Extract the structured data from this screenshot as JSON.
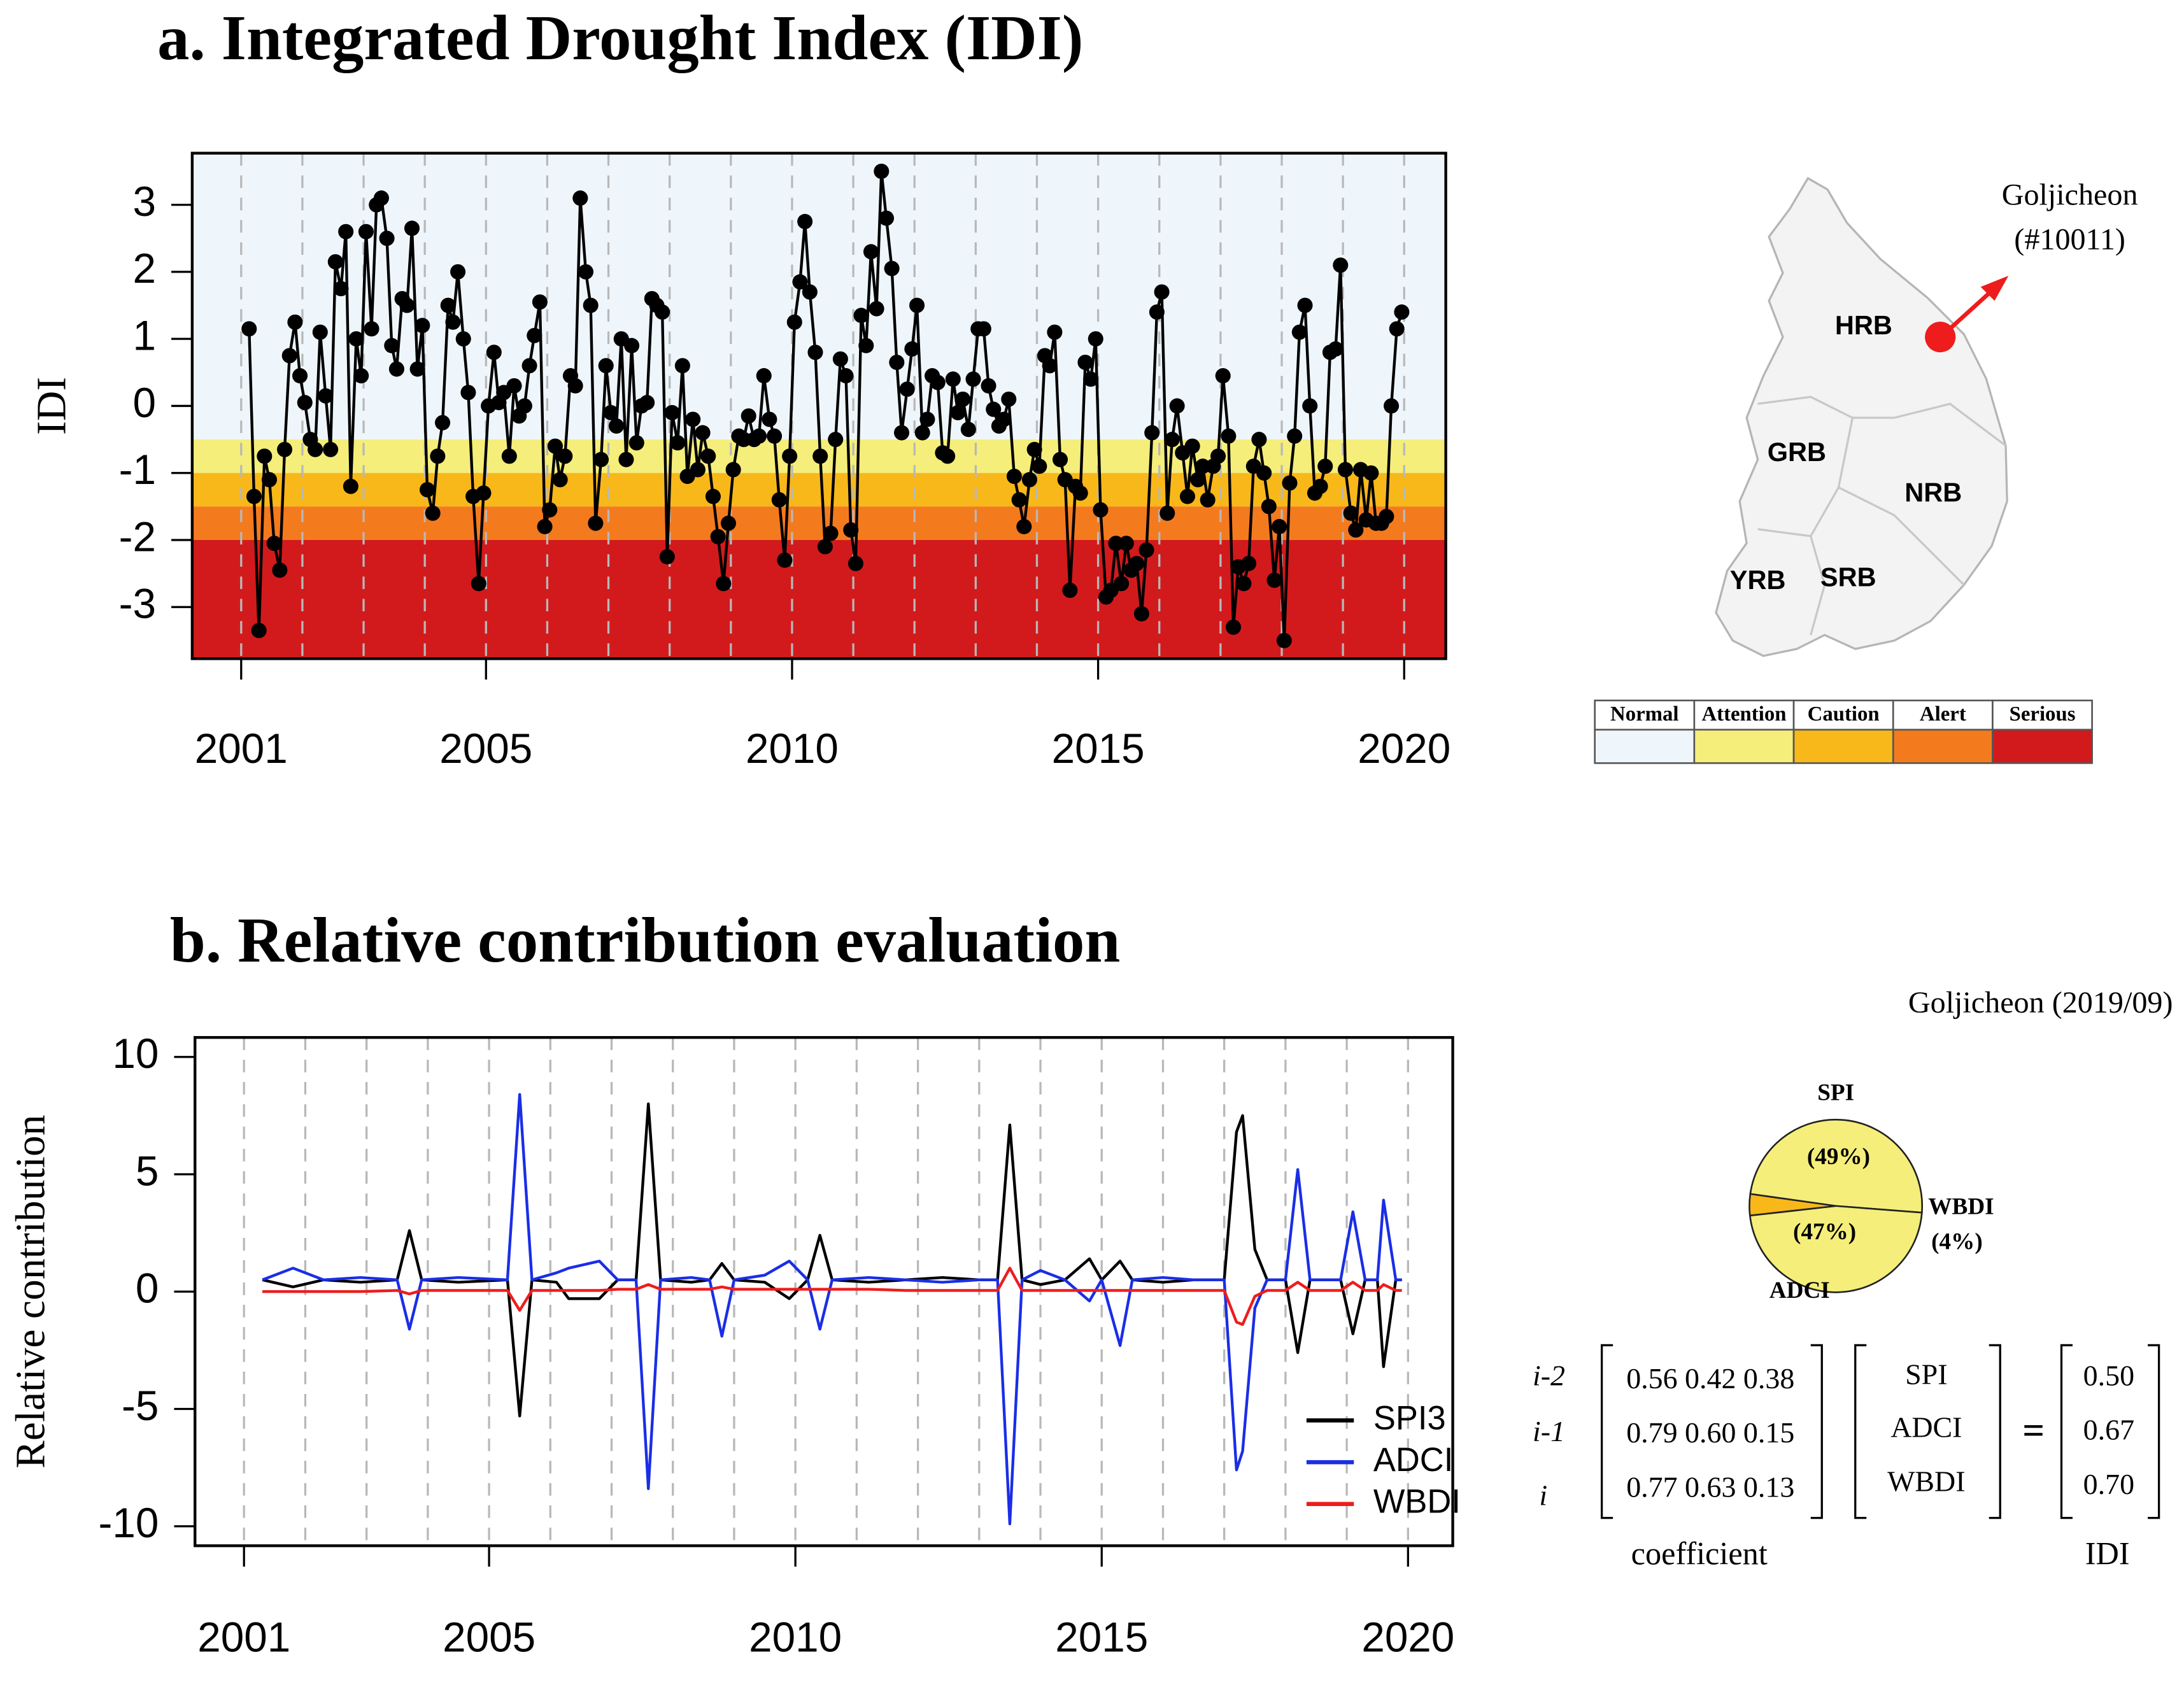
{
  "chart_data": [
    {
      "type": "line",
      "title": "a. Integrated Drought Index (IDI)",
      "ylabel": "IDI",
      "color": "#000000",
      "markers": true,
      "x": [
        2001.13,
        2001.21,
        2001.29,
        2001.38,
        2001.46,
        2001.54,
        2001.63,
        2001.71,
        2001.79,
        2001.88,
        2001.96,
        2002.04,
        2002.13,
        2002.21,
        2002.29,
        2002.38,
        2002.46,
        2002.54,
        2002.63,
        2002.71,
        2002.79,
        2002.88,
        2002.96,
        2003.04,
        2003.13,
        2003.21,
        2003.29,
        2003.38,
        2003.46,
        2003.54,
        2003.63,
        2003.71,
        2003.79,
        2003.88,
        2003.96,
        2004.04,
        2004.13,
        2004.21,
        2004.29,
        2004.38,
        2004.46,
        2004.54,
        2004.63,
        2004.71,
        2004.79,
        2004.88,
        2004.96,
        2005.04,
        2005.13,
        2005.21,
        2005.29,
        2005.38,
        2005.46,
        2005.54,
        2005.63,
        2005.71,
        2005.79,
        2005.88,
        2005.96,
        2006.04,
        2006.13,
        2006.21,
        2006.29,
        2006.38,
        2006.46,
        2006.54,
        2006.63,
        2006.71,
        2006.79,
        2006.88,
        2006.96,
        2007.04,
        2007.13,
        2007.21,
        2007.29,
        2007.38,
        2007.46,
        2007.54,
        2007.63,
        2007.71,
        2007.79,
        2007.88,
        2007.96,
        2008.04,
        2008.13,
        2008.21,
        2008.29,
        2008.38,
        2008.46,
        2008.54,
        2008.63,
        2008.71,
        2008.79,
        2008.88,
        2008.96,
        2009.04,
        2009.13,
        2009.21,
        2009.29,
        2009.38,
        2009.46,
        2009.54,
        2009.63,
        2009.71,
        2009.79,
        2009.88,
        2009.96,
        2010.04,
        2010.13,
        2010.21,
        2010.29,
        2010.38,
        2010.46,
        2010.54,
        2010.63,
        2010.71,
        2010.79,
        2010.88,
        2010.96,
        2011.04,
        2011.13,
        2011.21,
        2011.29,
        2011.38,
        2011.46,
        2011.54,
        2011.63,
        2011.71,
        2011.79,
        2011.88,
        2011.96,
        2012.04,
        2012.13,
        2012.21,
        2012.29,
        2012.38,
        2012.46,
        2012.54,
        2012.63,
        2012.71,
        2012.79,
        2012.88,
        2012.96,
        2013.04,
        2013.13,
        2013.21,
        2013.29,
        2013.38,
        2013.46,
        2013.54,
        2013.63,
        2013.71,
        2013.79,
        2013.88,
        2013.96,
        2014.04,
        2014.13,
        2014.21,
        2014.29,
        2014.38,
        2014.46,
        2014.54,
        2014.63,
        2014.71,
        2014.79,
        2014.88,
        2014.96,
        2015.04,
        2015.13,
        2015.21,
        2015.29,
        2015.38,
        2015.46,
        2015.54,
        2015.63,
        2015.71,
        2015.79,
        2015.88,
        2015.96,
        2016.04,
        2016.13,
        2016.21,
        2016.29,
        2016.38,
        2016.46,
        2016.54,
        2016.63,
        2016.71,
        2016.79,
        2016.88,
        2016.96,
        2017.04,
        2017.13,
        2017.21,
        2017.29,
        2017.38,
        2017.46,
        2017.54,
        2017.63,
        2017.71,
        2017.79,
        2017.88,
        2017.96,
        2018.04,
        2018.13,
        2018.21,
        2018.29,
        2018.38,
        2018.46,
        2018.54,
        2018.63,
        2018.71,
        2018.79,
        2018.88,
        2018.96,
        2019.04,
        2019.13,
        2019.21,
        2019.29,
        2019.38,
        2019.46,
        2019.54,
        2019.63,
        2019.71,
        2019.79,
        2019.88,
        2019.96
      ],
      "values": [
        1.15,
        -1.35,
        -3.35,
        -0.75,
        -1.1,
        -2.05,
        -2.45,
        -0.65,
        0.75,
        1.25,
        0.45,
        0.05,
        -0.5,
        -0.65,
        1.1,
        0.15,
        -0.65,
        2.15,
        1.75,
        2.6,
        -1.2,
        1.0,
        0.45,
        2.6,
        1.15,
        3.0,
        3.1,
        2.5,
        0.9,
        0.55,
        1.6,
        1.5,
        2.65,
        0.55,
        1.2,
        -1.25,
        -1.6,
        -0.75,
        -0.25,
        1.5,
        1.25,
        2.0,
        1.0,
        0.2,
        -1.35,
        -2.65,
        -1.3,
        0.0,
        0.8,
        0.05,
        0.2,
        -0.75,
        0.3,
        -0.15,
        0.0,
        0.6,
        1.05,
        1.55,
        -1.8,
        -1.55,
        -0.6,
        -1.1,
        -0.75,
        0.45,
        0.3,
        3.1,
        2.0,
        1.5,
        -1.75,
        -0.8,
        0.6,
        -0.1,
        -0.3,
        1.0,
        -0.8,
        0.9,
        -0.55,
        0.0,
        0.05,
        1.6,
        1.5,
        1.4,
        -2.25,
        -0.1,
        -0.55,
        0.6,
        -1.05,
        -0.2,
        -0.95,
        -0.4,
        -0.75,
        -1.35,
        -1.95,
        -2.65,
        -1.75,
        -0.95,
        -0.45,
        -0.5,
        -0.15,
        -0.5,
        -0.45,
        0.45,
        -0.2,
        -0.45,
        -1.4,
        -2.3,
        -0.75,
        1.25,
        1.85,
        2.75,
        1.7,
        0.8,
        -0.75,
        -2.1,
        -1.9,
        -0.5,
        0.7,
        0.45,
        -1.85,
        -2.35,
        1.35,
        0.9,
        2.3,
        1.45,
        3.5,
        2.8,
        2.05,
        0.65,
        -0.4,
        0.25,
        0.85,
        1.5,
        -0.4,
        -0.2,
        0.45,
        0.35,
        -0.7,
        -0.75,
        0.4,
        -0.1,
        0.1,
        -0.35,
        0.4,
        1.15,
        1.15,
        0.3,
        -0.05,
        -0.3,
        -0.2,
        0.1,
        -1.05,
        -1.4,
        -1.8,
        -1.1,
        -0.65,
        -0.9,
        0.75,
        0.6,
        1.1,
        -0.8,
        -1.1,
        -2.75,
        -1.2,
        -1.3,
        0.65,
        0.4,
        1.0,
        -1.55,
        -2.85,
        -2.75,
        -2.05,
        -2.65,
        -2.05,
        -2.45,
        -2.35,
        -3.1,
        -2.15,
        -0.4,
        1.4,
        1.7,
        -1.6,
        -0.5,
        0.0,
        -0.7,
        -1.35,
        -0.6,
        -1.1,
        -0.9,
        -1.4,
        -0.9,
        -0.75,
        0.45,
        -0.45,
        -3.3,
        -2.4,
        -2.65,
        -2.35,
        -0.9,
        -0.5,
        -1.0,
        -1.5,
        -2.6,
        -1.8,
        -3.5,
        -1.15,
        -0.45,
        1.1,
        1.5,
        0.0,
        -1.3,
        -1.2,
        -0.9,
        0.8,
        0.85,
        2.1,
        -0.95,
        -1.6,
        -1.85,
        -0.95,
        -1.7,
        -1.0,
        -1.75,
        -1.75,
        -1.65,
        0.0,
        1.15,
        1.4
      ],
      "xlim": [
        2000.2,
        2020.68
      ],
      "ylim": [
        -3.77,
        3.77
      ],
      "xticks": [
        2001,
        2005,
        2010,
        2015,
        2020
      ],
      "yticks": [
        -3,
        -2,
        -1,
        0,
        1,
        2,
        3
      ],
      "xgrid": [
        2001,
        2002,
        2003,
        2004,
        2005,
        2006,
        2007,
        2008,
        2009,
        2010,
        2011,
        2012,
        2013,
        2014,
        2015,
        2016,
        2017,
        2018,
        2019,
        2020
      ],
      "thresholds": [
        -0.5,
        -1,
        -1.5,
        -2
      ],
      "levels": [
        {
          "name": "Normal",
          "color": "#eef6fc"
        },
        {
          "name": "Attention",
          "color": "#f5ee7a"
        },
        {
          "name": "Caution",
          "color": "#f8b81a"
        },
        {
          "name": "Alert",
          "color": "#f47a1e"
        },
        {
          "name": "Serious",
          "color": "#d21a1c"
        }
      ]
    },
    {
      "type": "line",
      "title": "b. Relative contribution evaluation",
      "ylabel": "Relative contribution",
      "legend": "lower right",
      "x": [
        2001.3,
        2001.8,
        2002.3,
        2002.9,
        2003.5,
        2003.7,
        2003.9,
        2004.5,
        2005.3,
        2005.5,
        2005.7,
        2006.1,
        2006.3,
        2006.8,
        2007.1,
        2007.4,
        2007.6,
        2007.8,
        2008.3,
        2008.6,
        2008.8,
        2009.0,
        2009.5,
        2009.9,
        2010.2,
        2010.4,
        2010.6,
        2011.2,
        2011.8,
        2012.4,
        2013.0,
        2013.3,
        2013.5,
        2013.7,
        2014.0,
        2014.4,
        2014.8,
        2015.0,
        2015.3,
        2015.5,
        2016.0,
        2016.5,
        2017.0,
        2017.2,
        2017.3,
        2017.5,
        2017.7,
        2018.0,
        2018.2,
        2018.4,
        2018.9,
        2019.1,
        2019.3,
        2019.5,
        2019.6,
        2019.8,
        2019.9
      ],
      "series": [
        {
          "name": "SPI3",
          "color": "#000000",
          "values": [
            0.5,
            0.2,
            0.5,
            0.4,
            0.5,
            2.6,
            0.5,
            0.4,
            0.5,
            -5.3,
            0.5,
            0.4,
            -0.3,
            -0.3,
            0.5,
            0.5,
            8.0,
            0.5,
            0.4,
            0.5,
            1.2,
            0.5,
            0.4,
            -0.3,
            0.5,
            2.4,
            0.5,
            0.4,
            0.5,
            0.6,
            0.5,
            0.5,
            7.1,
            0.5,
            0.3,
            0.5,
            1.4,
            0.5,
            1.3,
            0.5,
            0.4,
            0.5,
            0.5,
            6.8,
            7.5,
            1.8,
            0.5,
            0.5,
            -2.6,
            0.5,
            0.5,
            -1.8,
            0.5,
            0.5,
            -3.2,
            0.5,
            0.5
          ]
        },
        {
          "name": "ADCI",
          "color": "#1a2ee6",
          "values": [
            0.5,
            1.0,
            0.5,
            0.6,
            0.5,
            -1.6,
            0.5,
            0.6,
            0.5,
            8.4,
            0.5,
            0.8,
            1.0,
            1.3,
            0.5,
            0.5,
            -8.4,
            0.5,
            0.6,
            0.5,
            -1.9,
            0.5,
            0.7,
            1.3,
            0.5,
            -1.6,
            0.5,
            0.6,
            0.5,
            0.4,
            0.5,
            0.5,
            -9.9,
            0.5,
            0.9,
            0.5,
            -0.4,
            0.5,
            -2.3,
            0.5,
            0.6,
            0.5,
            0.5,
            -7.6,
            -6.8,
            -0.7,
            0.5,
            0.5,
            5.2,
            0.5,
            0.5,
            3.4,
            0.5,
            0.5,
            3.9,
            0.5,
            0.5
          ]
        },
        {
          "name": "WBDI",
          "color": "#ee1c1c",
          "values": [
            0,
            0,
            0,
            0,
            0.05,
            -0.1,
            0.05,
            0.05,
            0.05,
            -0.8,
            0.05,
            0.05,
            0.05,
            0.05,
            0.1,
            0.1,
            0.3,
            0.1,
            0.1,
            0.1,
            0.2,
            0.1,
            0.1,
            0.1,
            0.1,
            0.1,
            0.1,
            0.1,
            0.05,
            0.05,
            0.05,
            0.05,
            1.0,
            0.05,
            0.05,
            0.05,
            0.05,
            0.05,
            0.05,
            0.05,
            0.05,
            0.05,
            0.05,
            -1.3,
            -1.4,
            -0.2,
            0.05,
            0.05,
            0.4,
            0.05,
            0.05,
            0.4,
            0.05,
            0.05,
            0.3,
            0.05,
            0.05
          ]
        }
      ],
      "xlim": [
        2000.2,
        2020.73
      ],
      "ylim": [
        -10.83,
        10.83
      ],
      "xticks": [
        2001,
        2005,
        2010,
        2015,
        2020
      ],
      "yticks": [
        -10,
        -5,
        0,
        5,
        10
      ],
      "xgrid": [
        2001,
        2002,
        2003,
        2004,
        2005,
        2006,
        2007,
        2008,
        2009,
        2010,
        2011,
        2012,
        2013,
        2014,
        2015,
        2016,
        2017,
        2018,
        2019,
        2020
      ]
    },
    {
      "type": "pie",
      "title": "Goljicheon (2019/09)",
      "categories": [
        "SPI",
        "ADCI",
        "WBDI"
      ],
      "values": [
        49,
        47,
        4
      ],
      "value_labels": [
        "(49%)",
        "(47%)",
        "(4%)"
      ],
      "colors": [
        "#f5ee7a",
        "#f5ee7a",
        "#f8b81a"
      ]
    }
  ],
  "map": {
    "basins": [
      "HRB",
      "GRB",
      "NRB",
      "YRB",
      "SRB"
    ],
    "station": [
      "Goljicheon",
      "(#10011)"
    ]
  },
  "equation": {
    "rows": [
      "i-2",
      "i-1",
      "i"
    ],
    "coefficients": [
      [
        "0.56",
        "0.42",
        "0.38"
      ],
      [
        "0.79",
        "0.60",
        "0.15"
      ],
      [
        "0.77",
        "0.63",
        "0.13"
      ]
    ],
    "variables": [
      "SPI",
      "ADCI",
      "WBDI"
    ],
    "operator": "=",
    "idi": [
      "0.50",
      "0.67",
      "0.70"
    ],
    "coefficient_label": "coefficient",
    "idi_label": "IDI"
  }
}
